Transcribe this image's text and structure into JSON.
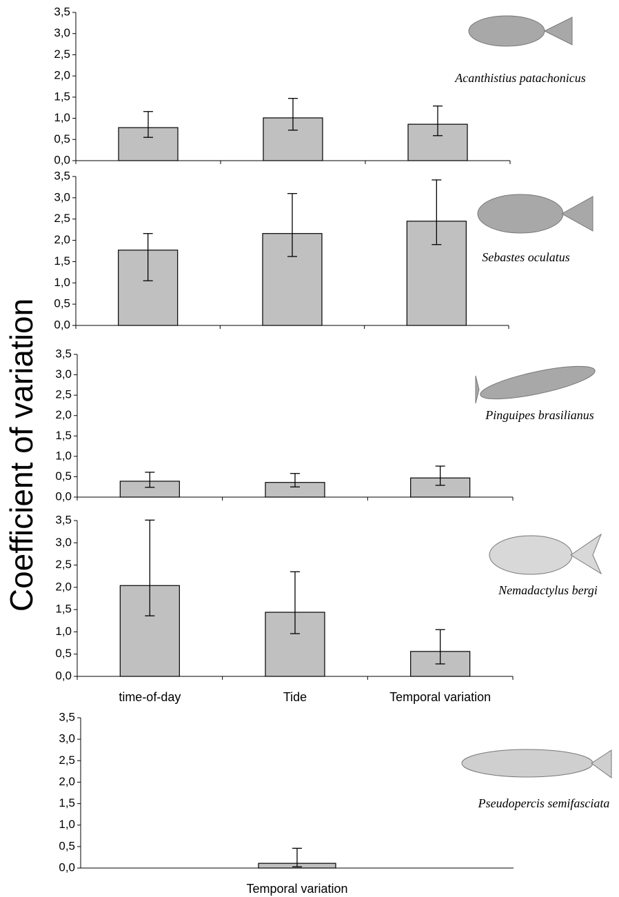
{
  "ylabel": "Coefficient of variation",
  "chart_data": [
    {
      "type": "bar",
      "annotation": "Acanthistius patachonicus",
      "categories": [
        null,
        null,
        null
      ],
      "values": [
        0.78,
        1.01,
        0.86
      ],
      "lower": [
        0.55,
        0.72,
        0.59
      ],
      "upper": [
        1.16,
        1.47,
        1.29
      ],
      "color": "#c0c0c0",
      "ylim": [
        0,
        3.5
      ],
      "yticks": [
        {
          "value": 0,
          "label": "0,0"
        },
        {
          "value": 0.5,
          "label": "0,5"
        },
        {
          "value": 1,
          "label": "1,0"
        },
        {
          "value": 1.5,
          "label": "1,5"
        },
        {
          "value": 2,
          "label": "2,0"
        },
        {
          "value": 2.5,
          "label": "2,5"
        },
        {
          "value": 3,
          "label": "3,0"
        },
        {
          "value": 3.5,
          "label": "3,5"
        }
      ]
    },
    {
      "type": "bar",
      "annotation": "Sebastes oculatus",
      "categories": [
        null,
        null,
        null
      ],
      "values": [
        1.77,
        2.16,
        2.45
      ],
      "lower": [
        1.05,
        1.62,
        1.9
      ],
      "upper": [
        2.16,
        3.1,
        3.42
      ],
      "color": "#c0c0c0",
      "ylim": [
        0,
        3.5
      ],
      "yticks": [
        {
          "value": 0,
          "label": "0,0"
        },
        {
          "value": 0.5,
          "label": "0,5"
        },
        {
          "value": 1,
          "label": "1,0"
        },
        {
          "value": 1.5,
          "label": "1,5"
        },
        {
          "value": 2,
          "label": "2,0"
        },
        {
          "value": 2.5,
          "label": "2,5"
        },
        {
          "value": 3,
          "label": "3,0"
        },
        {
          "value": 3.5,
          "label": "3,5"
        }
      ]
    },
    {
      "type": "bar",
      "annotation": "Pinguipes brasilianus",
      "categories": [
        null,
        null,
        null
      ],
      "values": [
        0.39,
        0.36,
        0.47
      ],
      "lower": [
        0.24,
        0.25,
        0.29
      ],
      "upper": [
        0.61,
        0.58,
        0.76
      ],
      "color": "#c0c0c0",
      "ylim": [
        0,
        3.5
      ],
      "yticks": [
        {
          "value": 0,
          "label": "0,0"
        },
        {
          "value": 0.5,
          "label": "0,5"
        },
        {
          "value": 1,
          "label": "1,0"
        },
        {
          "value": 1.5,
          "label": "1,5"
        },
        {
          "value": 2,
          "label": "2,0"
        },
        {
          "value": 2.5,
          "label": "2,5"
        },
        {
          "value": 3,
          "label": "3,0"
        },
        {
          "value": 3.5,
          "label": "3,5"
        }
      ]
    },
    {
      "type": "bar",
      "annotation": "Nemadactylus bergi",
      "categories": [
        "time-of-day",
        "Tide",
        "Temporal variation"
      ],
      "values": [
        2.04,
        1.44,
        0.56
      ],
      "lower": [
        1.36,
        0.96,
        0.28
      ],
      "upper": [
        3.51,
        2.35,
        1.05
      ],
      "color": "#c0c0c0",
      "ylim": [
        0,
        3.5
      ],
      "yticks": [
        {
          "value": 0,
          "label": "0,0"
        },
        {
          "value": 0.5,
          "label": "0,5"
        },
        {
          "value": 1,
          "label": "1,0"
        },
        {
          "value": 1.5,
          "label": "1,5"
        },
        {
          "value": 2,
          "label": "2,0"
        },
        {
          "value": 2.5,
          "label": "2,5"
        },
        {
          "value": 3,
          "label": "3,0"
        },
        {
          "value": 3.5,
          "label": "3,5"
        }
      ]
    },
    {
      "type": "bar",
      "annotation": "Pseudopercis semifasciata",
      "categories": [
        "Temporal variation"
      ],
      "values": [
        0.11
      ],
      "lower": [
        0.03
      ],
      "upper": [
        0.46
      ],
      "color": "#c0c0c0",
      "ylim": [
        0,
        3.5
      ],
      "yticks": [
        {
          "value": 0,
          "label": "0,0"
        },
        {
          "value": 0.5,
          "label": "0,5"
        },
        {
          "value": 1,
          "label": "1,0"
        },
        {
          "value": 1.5,
          "label": "1,5"
        },
        {
          "value": 2,
          "label": "2,0"
        },
        {
          "value": 2.5,
          "label": "2,5"
        },
        {
          "value": 3,
          "label": "3,0"
        },
        {
          "value": 3.5,
          "label": "3,5"
        }
      ]
    }
  ]
}
